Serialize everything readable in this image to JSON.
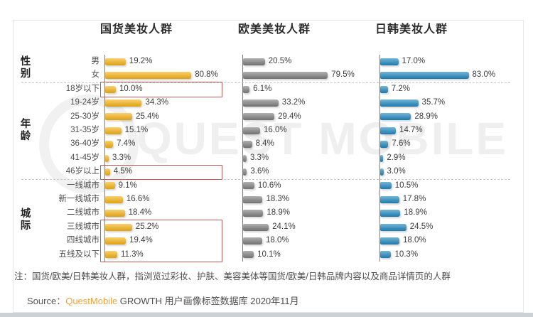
{
  "chart_data": {
    "type": "bar",
    "orientation": "horizontal",
    "unit": "%",
    "value_label_format": "one_decimal_percent",
    "groups": [
      {
        "label": "性别",
        "categories": [
          "男",
          "女"
        ]
      },
      {
        "label": "年龄",
        "categories": [
          "18岁以下",
          "19-24岁",
          "25-30岁",
          "31-35岁",
          "36-40岁",
          "41-45岁",
          "46岁以上"
        ]
      },
      {
        "label": "城际",
        "categories": [
          "一线城市",
          "新一线城市",
          "二线城市",
          "三线城市",
          "四线城市",
          "五线及以下"
        ]
      }
    ],
    "series": [
      {
        "name": "国货美妆人群",
        "color": "#F5B315",
        "values": [
          19.2,
          80.8,
          10.0,
          34.3,
          25.4,
          15.1,
          7.4,
          3.3,
          4.5,
          9.1,
          16.6,
          18.4,
          25.2,
          19.4,
          11.3
        ]
      },
      {
        "name": "欧美美妆人群",
        "color": "#7E7E7E",
        "values": [
          20.5,
          79.5,
          6.1,
          33.2,
          29.4,
          16.0,
          8.4,
          3.3,
          3.6,
          10.6,
          18.3,
          18.9,
          24.1,
          18.0,
          10.1
        ]
      },
      {
        "name": "日韩美妆人群",
        "color": "#1F87BE",
        "values": [
          17.0,
          83.0,
          7.2,
          35.7,
          28.9,
          14.7,
          7.6,
          2.9,
          3.0,
          10.5,
          17.8,
          18.9,
          24.5,
          18.0,
          10.3
        ]
      }
    ],
    "highlights": [
      {
        "series": "国货美妆人群",
        "from": "18岁以下",
        "to": "18岁以下",
        "color": "#C05A58"
      },
      {
        "series": "国货美妆人群",
        "from": "46岁以上",
        "to": "46岁以上",
        "color": "#C05A58"
      },
      {
        "series": "国货美妆人群",
        "from": "三线城市",
        "to": "五线及以下",
        "color": "#C05A58"
      }
    ]
  },
  "watermark": {
    "text": "QUEST MOBILE"
  },
  "footnote": "注：国货/欧美/日韩美妆人群，指浏览过彩妆、护肤、美容美体等国货/欧美/日韩品牌内容以及商品详情页的人群",
  "source": {
    "label": "Source：",
    "brand": "QuestMobile",
    "rest": " GROWTH 用户画像标签数据库 2020年11月"
  }
}
